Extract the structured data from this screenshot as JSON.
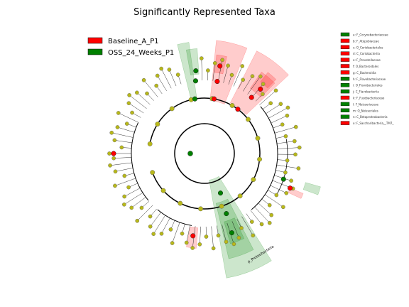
{
  "chart_data": {
    "type": "cladogram",
    "title": "Significantly Represented Taxa",
    "groups": [
      {
        "name": "Baseline_A_P1",
        "color": "#ff0000"
      },
      {
        "name": "OSS_24_Weeks_P1",
        "color": "#008000"
      }
    ],
    "taxa": [
      {
        "key": "a",
        "name": "F_Corynebacteriaceae",
        "group": "OSS_24_Weeks_P1"
      },
      {
        "key": "b",
        "name": "F_Atopobiaceae",
        "group": "Baseline_A_P1"
      },
      {
        "key": "c",
        "name": "O_Coriobacteriales",
        "group": "Baseline_A_P1"
      },
      {
        "key": "d",
        "name": "C_Coriobacteriia",
        "group": "Baseline_A_P1"
      },
      {
        "key": "e",
        "name": "F_Prevotellaceae",
        "group": "Baseline_A_P1"
      },
      {
        "key": "f",
        "name": "O_Bacteroidales",
        "group": "Baseline_A_P1"
      },
      {
        "key": "g",
        "name": "C_Bacteroidia",
        "group": "Baseline_A_P1"
      },
      {
        "key": "h",
        "name": "F_Flavobacteriaceae",
        "group": "OSS_24_Weeks_P1"
      },
      {
        "key": "i",
        "name": "O_Flavobacteriales",
        "group": "OSS_24_Weeks_P1"
      },
      {
        "key": "j",
        "name": "C_Flavobacteriia",
        "group": "OSS_24_Weeks_P1"
      },
      {
        "key": "k",
        "name": "F_Fusobacteriaceae",
        "group": "Baseline_A_P1"
      },
      {
        "key": "l",
        "name": "F_Neisseriaceae",
        "group": "OSS_24_Weeks_P1"
      },
      {
        "key": "m",
        "name": "O_Neisseriales",
        "group": "OSS_24_Weeks_P1"
      },
      {
        "key": "n",
        "name": "C_Betaproteobacteria",
        "group": "OSS_24_Weeks_P1"
      },
      {
        "key": "o",
        "name": "F_Saccharibacteria__TM7_",
        "group": "Baseline_A_P1"
      }
    ],
    "clade_labels": [
      "p_Proteobacteria"
    ]
  }
}
